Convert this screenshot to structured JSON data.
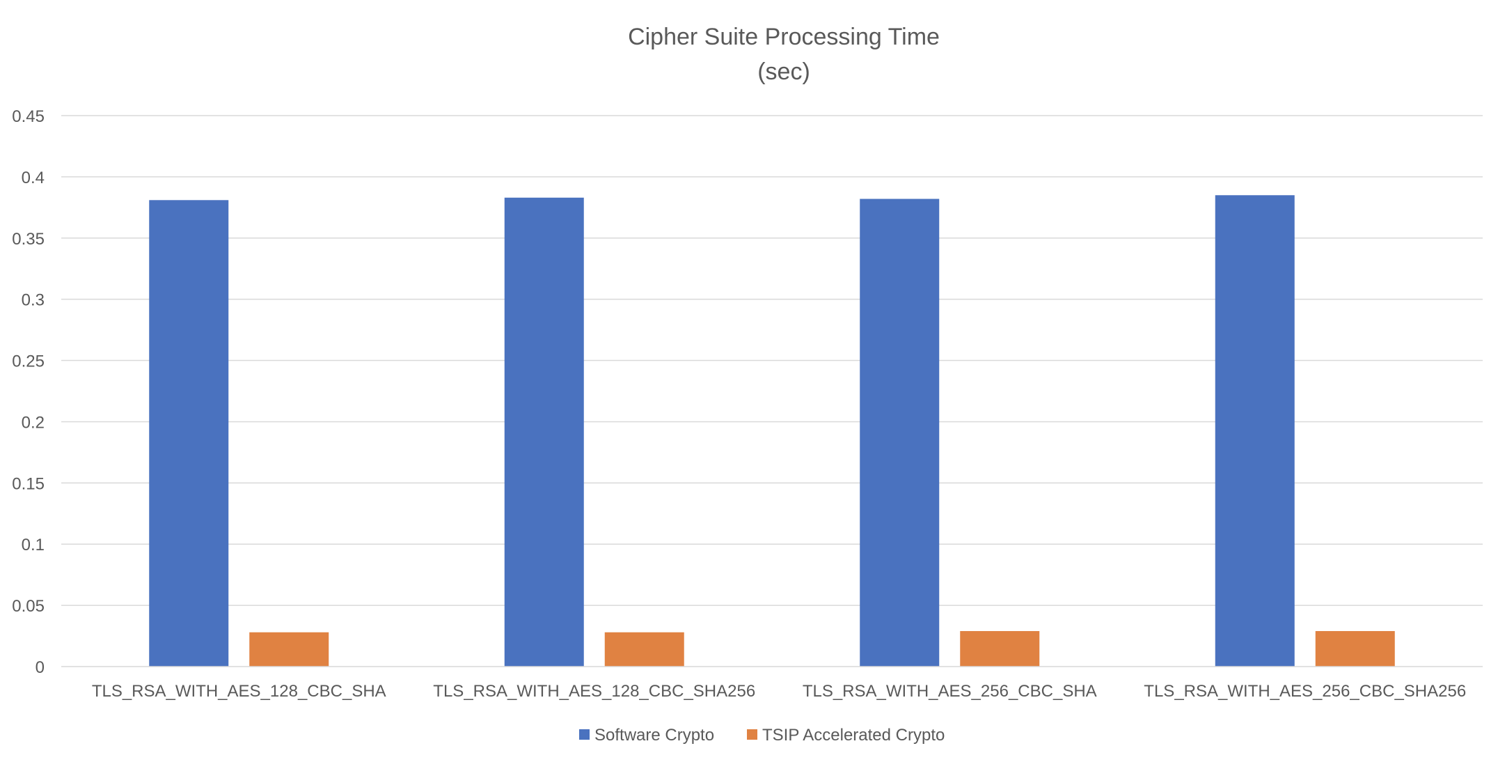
{
  "chart_data": {
    "type": "bar",
    "title": "Cipher Suite Processing Time",
    "subtitle": "(sec)",
    "xlabel": "",
    "ylabel": "",
    "ylim": [
      0,
      0.45
    ],
    "yticks": [
      "0",
      "0.05",
      "0.1",
      "0.15",
      "0.2",
      "0.25",
      "0.3",
      "0.35",
      "0.4",
      "0.45"
    ],
    "ytick_values": [
      0,
      0.05,
      0.1,
      0.15,
      0.2,
      0.25,
      0.3,
      0.35,
      0.4,
      0.45
    ],
    "grid": true,
    "legend_position": "bottom",
    "categories": [
      "TLS_RSA_WITH_AES_128_CBC_SHA",
      "TLS_RSA_WITH_AES_128_CBC_SHA256",
      "TLS_RSA_WITH_AES_256_CBC_SHA",
      "TLS_RSA_WITH_AES_256_CBC_SHA256"
    ],
    "series": [
      {
        "name": "Software Crypto",
        "color": "#4a72bf",
        "values": [
          0.381,
          0.383,
          0.382,
          0.385
        ]
      },
      {
        "name": "TSIP Accelerated Crypto",
        "color": "#e08242",
        "values": [
          0.028,
          0.028,
          0.029,
          0.029
        ]
      }
    ]
  }
}
